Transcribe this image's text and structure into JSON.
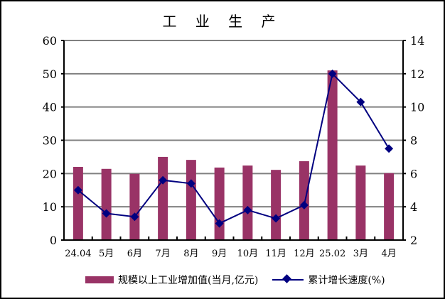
{
  "chart_data": {
    "type": "bar+line",
    "title": "工 业 生 产",
    "categories": [
      "24.04",
      "5月",
      "6月",
      "7月",
      "8月",
      "9月",
      "10月",
      "11月",
      "12月",
      "25.02",
      "3月",
      "4月"
    ],
    "series": [
      {
        "name": "规模以上工业增加值(当月,亿元)",
        "type": "bar",
        "axis": "left",
        "color": "#993366",
        "values": [
          22.0,
          21.4,
          19.9,
          25.0,
          24.1,
          21.8,
          22.4,
          21.1,
          23.7,
          51.0,
          22.4,
          20.1
        ]
      },
      {
        "name": "累计增长速度(%)",
        "type": "line",
        "axis": "right",
        "color": "#000080",
        "marker": "diamond",
        "values": [
          5.0,
          3.6,
          3.4,
          5.6,
          5.4,
          3.0,
          3.8,
          3.3,
          4.1,
          12.0,
          10.3,
          7.5
        ]
      }
    ],
    "y_left": {
      "range": [
        0,
        60
      ],
      "ticks": [
        "0",
        "10",
        "20",
        "30",
        "40",
        "50",
        "60"
      ]
    },
    "y_right": {
      "range": [
        2,
        14
      ],
      "ticks": [
        "2",
        "4",
        "6",
        "8",
        "10",
        "12",
        "14"
      ]
    },
    "grid": true,
    "legend": "bottom"
  }
}
